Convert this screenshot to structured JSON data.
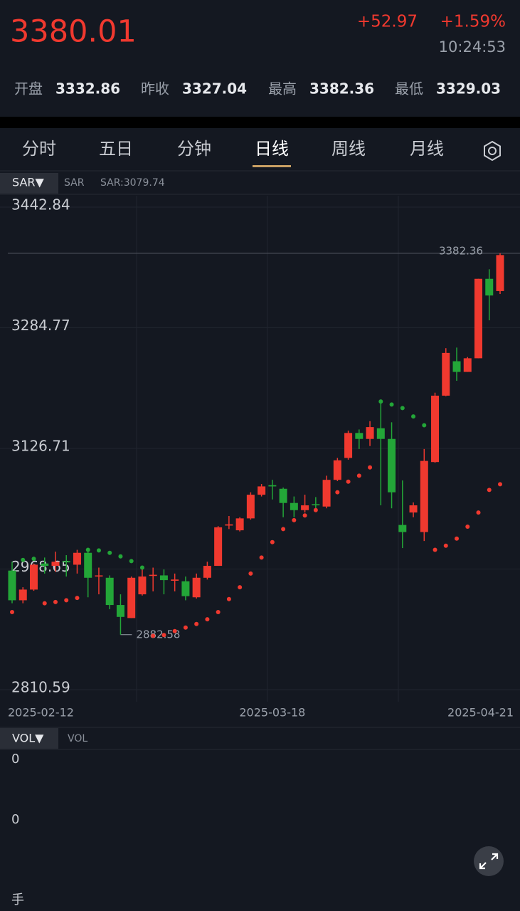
{
  "header": {
    "price": "3380.01",
    "change": "+52.97",
    "change_pct": "+1.59%",
    "time": "10:24:53",
    "stats": [
      {
        "label": "开盘",
        "value": "3332.86"
      },
      {
        "label": "昨收",
        "value": "3327.04"
      },
      {
        "label": "最高",
        "value": "3382.36"
      },
      {
        "label": "最低",
        "value": "3329.03"
      }
    ]
  },
  "tabs": {
    "items": [
      "分时",
      "五日",
      "分钟",
      "日线",
      "周线",
      "月线"
    ],
    "active": 3
  },
  "indicator": {
    "button": "SAR▼",
    "name": "SAR",
    "value_text": "SAR:3079.74"
  },
  "chart_data": {
    "type": "candlestick",
    "up_color": "#f0392f",
    "down_color": "#23a638",
    "grid": true,
    "x": [
      "2025-02-12",
      null,
      null,
      null,
      null,
      null,
      null,
      null,
      null,
      null,
      null,
      null,
      null,
      null,
      null,
      null,
      null,
      null,
      null,
      null,
      null,
      null,
      null,
      null,
      "2025-03-18",
      null,
      null,
      null,
      null,
      null,
      null,
      null,
      null,
      null,
      null,
      null,
      null,
      null,
      null,
      null,
      null,
      null,
      null,
      null,
      null,
      "2025-04-21"
    ],
    "ylim": [
      2810.59,
      3442.84
    ],
    "yticks": [
      {
        "value": 3442.84,
        "label": "3442.84"
      },
      {
        "value": 3284.77,
        "label": "3284.77"
      },
      {
        "value": 3126.71,
        "label": "3126.71"
      },
      {
        "value": 2968.65,
        "label": "2968.65"
      },
      {
        "value": 2810.59,
        "label": "2810.59"
      }
    ],
    "open": [
      2966.6,
      2927.7,
      2941.7,
      2975.9,
      2972.8,
      2979.0,
      2974.3,
      2989.9,
      2958.8,
      2957.2,
      2921.5,
      2904.4,
      2935.5,
      2959.6,
      2960.3,
      2953.3,
      2952.6,
      2931.6,
      2957.2,
      2972.8,
      3025.6,
      3019.4,
      3035.0,
      3066.0,
      3078.5,
      3073.8,
      3055.2,
      3045.8,
      3053.6,
      3050.5,
      3085.5,
      3114.2,
      3146.9,
      3139.1,
      3153.1,
      3139.1,
      3026.4,
      3042.7,
      3017.1,
      3108.8,
      3195.8,
      3240.9,
      3226.9,
      3244.8,
      3348.9,
      3332.86
    ],
    "high": [
      2978.2,
      2944.8,
      2975.9,
      2983.7,
      2991.4,
      2986.8,
      2993.8,
      2996.1,
      2970.5,
      2960.3,
      2935.5,
      2958.8,
      2970.5,
      2970.5,
      2968.1,
      2962.7,
      2958.8,
      2962.7,
      2978.2,
      3024.9,
      3038.1,
      3036.5,
      3069.2,
      3080.0,
      3085.5,
      3075.4,
      3063.7,
      3066.0,
      3062.9,
      3090.9,
      3114.2,
      3150.0,
      3151.5,
      3162.4,
      3188.1,
      3160.9,
      3084.7,
      3055.9,
      3125.9,
      3199.7,
      3258.0,
      3258.8,
      3246.4,
      3348.9,
      3361.4,
      3382.36
    ],
    "low": [
      2923.8,
      2923.8,
      2940.1,
      2962.7,
      2965.0,
      2958.8,
      2962.7,
      2931.6,
      2935.5,
      2916.0,
      2882.58,
      2904.4,
      2933.9,
      2939.4,
      2935.5,
      2939.4,
      2927.7,
      2930.0,
      2954.9,
      2972.8,
      3021.0,
      3017.9,
      3033.4,
      3063.7,
      3059.8,
      3036.5,
      3036.5,
      3042.7,
      3045.8,
      3048.2,
      3083.9,
      3111.9,
      3125.9,
      3129.8,
      3052.1,
      3048.2,
      2996.1,
      3036.5,
      3005.4,
      3108.0,
      3195.1,
      3215.3,
      3226.9,
      3244.8,
      3294.5,
      3329.03
    ],
    "close": [
      2927.7,
      2941.7,
      2974.3,
      2972.8,
      2978.2,
      2977.4,
      2989.9,
      2957.2,
      2960.3,
      2921.5,
      2905.9,
      2957.2,
      2958.8,
      2961.1,
      2954.1,
      2954.9,
      2933.1,
      2957.2,
      2972.8,
      3023.3,
      3027.2,
      3035.0,
      3066.0,
      3076.9,
      3076.9,
      3055.2,
      3045.8,
      3052.1,
      3052.1,
      3085.5,
      3111.1,
      3146.9,
      3139.1,
      3154.6,
      3139.1,
      3069.2,
      3017.1,
      3052.1,
      3110.3,
      3195.8,
      3251.8,
      3226.9,
      3244.8,
      3348.9,
      3327.04,
      3380.01
    ],
    "sar": [
      2912.2,
      2980.6,
      2982.1,
      2923.8,
      2925.4,
      2927.7,
      2930.8,
      2993.8,
      2993.0,
      2989.9,
      2985.2,
      2979.0,
      2970.5,
      2881.1,
      2882.2,
      2887.3,
      2892.0,
      2896.6,
      2902.8,
      2912.2,
      2929.3,
      2944.8,
      2962.7,
      2983.7,
      3003.9,
      3021.0,
      3032.6,
      3038.8,
      3045.8,
      3055.9,
      3069.2,
      3083.1,
      3090.9,
      3101.8,
      3188.1,
      3184.2,
      3179.5,
      3168.6,
      3157.0,
      2993.8,
      2999.2,
      3008.5,
      3024.1,
      3042.7,
      3072.3,
      3079.74
    ]
  },
  "volume": {
    "button": "VOL▼",
    "name": "VOL",
    "ticks": [
      "0",
      "0"
    ],
    "unit": "手"
  }
}
